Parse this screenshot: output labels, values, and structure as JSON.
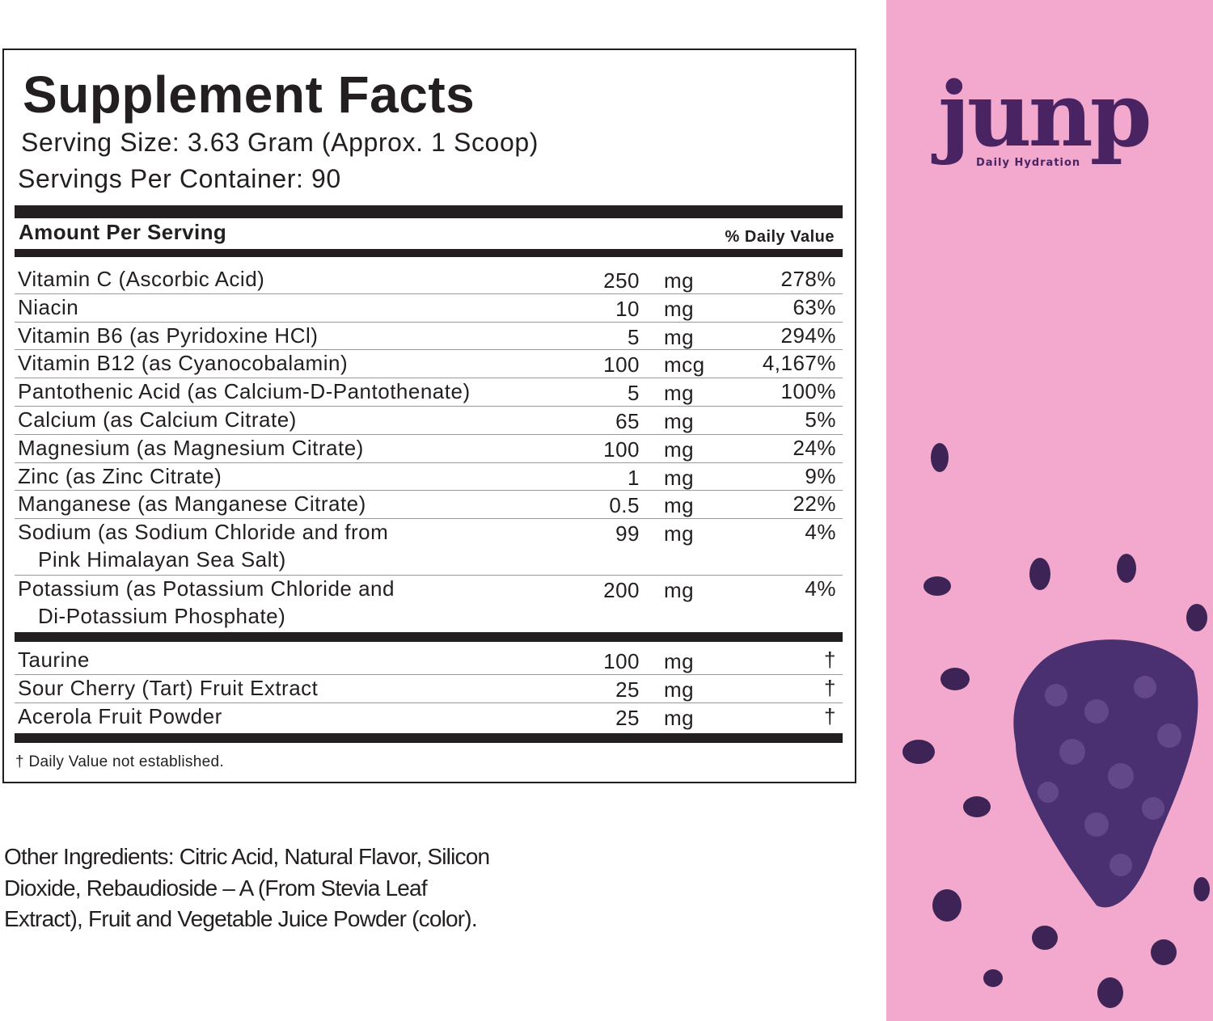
{
  "label": {
    "title": "Supplement Facts",
    "serving_size": "Serving Size: 3.63 Gram (Approx. 1 Scoop)",
    "servings_per_container": "Servings Per Container: 90",
    "amount_header": "Amount Per Serving",
    "dv_header": "% Daily Value",
    "rows": [
      {
        "name": [
          "Vitamin C (Ascorbic Acid)"
        ],
        "amount": "250",
        "unit": "mg",
        "dv": "278%"
      },
      {
        "name": [
          "Niacin"
        ],
        "amount": "10",
        "unit": "mg",
        "dv": "63%"
      },
      {
        "name": [
          "Vitamin B6 (as Pyridoxine HCl)"
        ],
        "amount": "5",
        "unit": "mg",
        "dv": "294%"
      },
      {
        "name": [
          "Vitamin B12 (as Cyanocobalamin)"
        ],
        "amount": "100",
        "unit": "mcg",
        "dv": "4,167%"
      },
      {
        "name": [
          "Pantothenic Acid (as Calcium-D-Pantothenate)"
        ],
        "amount": "5",
        "unit": "mg",
        "dv": "100%"
      },
      {
        "name": [
          "Calcium (as Calcium Citrate)"
        ],
        "amount": "65",
        "unit": "mg",
        "dv": "5%"
      },
      {
        "name": [
          "Magnesium (as Magnesium Citrate)"
        ],
        "amount": "100",
        "unit": "mg",
        "dv": "24%"
      },
      {
        "name": [
          "Zinc (as Zinc Citrate)"
        ],
        "amount": "1",
        "unit": "mg",
        "dv": "9%"
      },
      {
        "name": [
          "Manganese (as Manganese Citrate)"
        ],
        "amount": "0.5",
        "unit": "mg",
        "dv": "22%"
      },
      {
        "name": [
          "Sodium (as Sodium Chloride and from",
          "Pink Himalayan Sea Salt)"
        ],
        "amount": "99",
        "unit": "mg",
        "dv": "4%"
      },
      {
        "name": [
          "Potassium (as Potassium Chloride and",
          "Di-Potassium Phosphate)"
        ],
        "amount": "200",
        "unit": "mg",
        "dv": "4%"
      }
    ],
    "other_rows": [
      {
        "name": [
          "Taurine"
        ],
        "amount": "100",
        "unit": "mg",
        "dv": "†"
      },
      {
        "name": [
          "Sour Cherry (Tart) Fruit Extract"
        ],
        "amount": "25",
        "unit": "mg",
        "dv": "†"
      },
      {
        "name": [
          "Acerola Fruit Powder"
        ],
        "amount": "25",
        "unit": "mg",
        "dv": "†"
      }
    ],
    "footnote": "† Daily Value not established."
  },
  "other_ingredients": [
    "Other Ingredients: Citric Acid, Natural Flavor, Silicon",
    "Dioxide, Rebaudioside – A (From Stevia Leaf",
    "Extract), Fruit and Vegetable Juice Powder (color)."
  ],
  "brand": {
    "logo": "junp",
    "tagline": "Daily Hydration"
  }
}
